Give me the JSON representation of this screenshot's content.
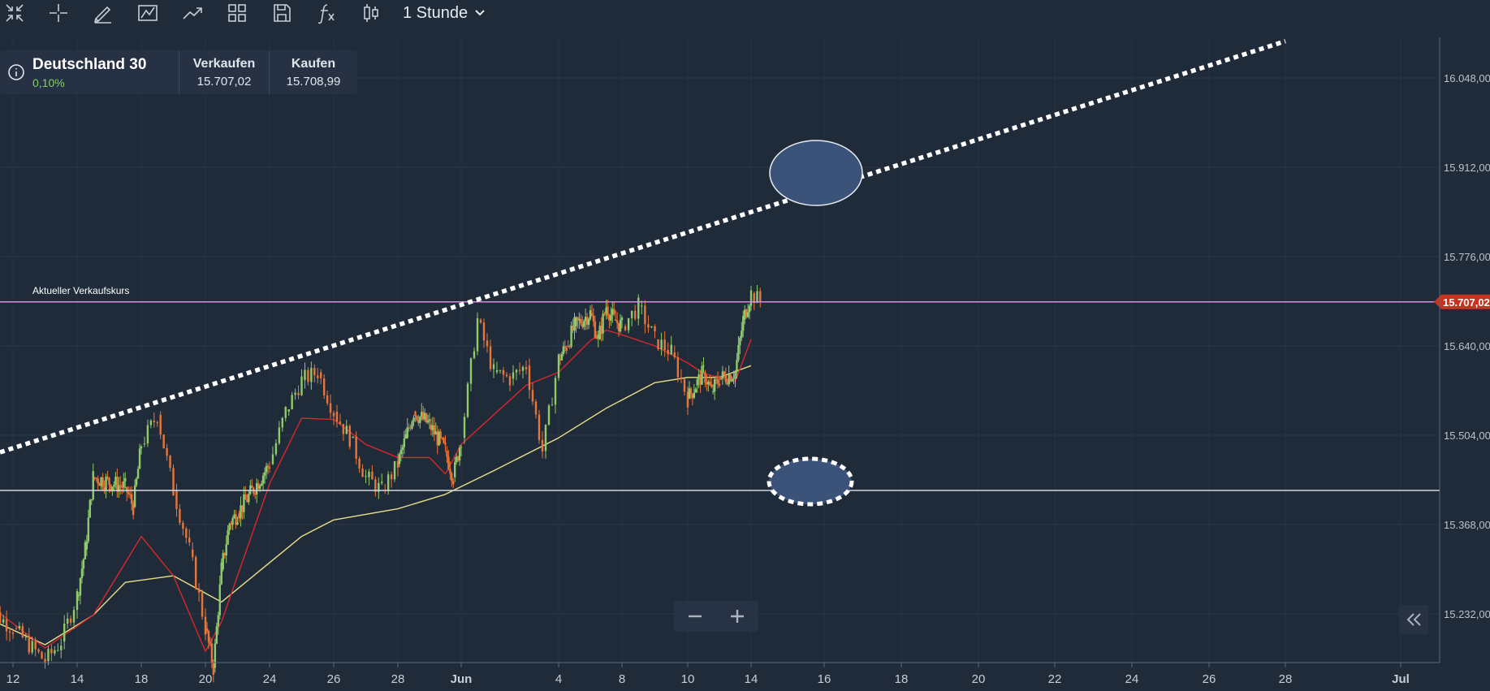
{
  "toolbar": {
    "icons": [
      "collapse-arrows-icon",
      "crosshair-icon",
      "pencil-icon",
      "line-chart-icon",
      "trend-icon",
      "grid-layout-icon",
      "save-icon",
      "function-icon",
      "candlestick-icon"
    ],
    "timeframe_label": "1 Stunde"
  },
  "instrument": {
    "name": "Deutschland 30",
    "change": "0,10%",
    "sell_label": "Verkaufen",
    "sell_price": "15.707,02",
    "buy_label": "Kaufen",
    "buy_price": "15.708,99"
  },
  "chart_data": {
    "type": "candlestick",
    "annotation_label": "Aktueller Verkaufskurs",
    "current_price_label": "15.707,02",
    "current_price": 15707.02,
    "y_ticks": [
      {
        "value": 16048,
        "label": "16.048,00"
      },
      {
        "value": 15912,
        "label": "15.912,00"
      },
      {
        "value": 15776,
        "label": "15.776,00"
      },
      {
        "value": 15640,
        "label": "15.640,00"
      },
      {
        "value": 15504,
        "label": "15.504,00"
      },
      {
        "value": 15368,
        "label": "15.368,00"
      },
      {
        "value": 15232,
        "label": "15.232,00"
      }
    ],
    "x_ticks": [
      "12",
      "14",
      "18",
      "20",
      "24",
      "26",
      "28",
      "Jun",
      "4",
      "8",
      "10",
      "14",
      "16",
      "18",
      "20",
      "22",
      "24",
      "26",
      "28",
      "Jul"
    ],
    "ylim": [
      15160,
      16110
    ],
    "colors": {
      "up": "#8fca6b",
      "down": "#e8763a",
      "ma_fast": "#d9262b",
      "ma_slow": "#e7e08a",
      "price_line": "#d88ce0",
      "price_tag": "#c8321e",
      "support_line": "#d3d8de",
      "trendline": "#ffffff",
      "ellipse_fill": "#3b5378"
    },
    "support_level": 15420,
    "trendline_points": [
      {
        "date": "12.05.",
        "value": 15478
      },
      {
        "date": "28.06.",
        "value": 16104
      }
    ],
    "ma_fast": [
      {
        "date": "11.05.",
        "value": 15255
      },
      {
        "date": "13.05.",
        "value": 15180
      },
      {
        "date": "15.05.",
        "value": 15230
      },
      {
        "date": "18.05.",
        "value": 15350
      },
      {
        "date": "19.05.",
        "value": 15290
      },
      {
        "date": "20.05.",
        "value": 15175
      },
      {
        "date": "21.05.",
        "value": 15220
      },
      {
        "date": "24.05.",
        "value": 15430
      },
      {
        "date": "25.05.",
        "value": 15530
      },
      {
        "date": "26.05.",
        "value": 15528
      },
      {
        "date": "27.05.",
        "value": 15490
      },
      {
        "date": "28.05.",
        "value": 15470
      },
      {
        "date": "30.05.",
        "value": 15470
      },
      {
        "date": "31.05.",
        "value": 15445
      },
      {
        "date": "01.06.",
        "value": 15490
      },
      {
        "date": "03.06.",
        "value": 15580
      },
      {
        "date": "04.06.",
        "value": 15600
      },
      {
        "date": "06.06.",
        "value": 15648
      },
      {
        "date": "07.06.",
        "value": 15664
      },
      {
        "date": "08.06.",
        "value": 15657
      },
      {
        "date": "09.06.",
        "value": 15640
      },
      {
        "date": "10.06.",
        "value": 15614
      },
      {
        "date": "11.06.",
        "value": 15598
      },
      {
        "date": "13.06.",
        "value": 15586
      },
      {
        "date": "14.06.",
        "value": 15650
      }
    ],
    "ma_slow": [
      {
        "date": "11.05.",
        "value": 15230
      },
      {
        "date": "13.05.",
        "value": 15185
      },
      {
        "date": "15.05.",
        "value": 15230
      },
      {
        "date": "17.05.",
        "value": 15280
      },
      {
        "date": "19.05.",
        "value": 15290
      },
      {
        "date": "21.05.",
        "value": 15250
      },
      {
        "date": "24.05.",
        "value": 15310
      },
      {
        "date": "25.05.",
        "value": 15350
      },
      {
        "date": "26.05.",
        "value": 15375
      },
      {
        "date": "28.05.",
        "value": 15392
      },
      {
        "date": "31.05.",
        "value": 15414
      },
      {
        "date": "02.06.",
        "value": 15450
      },
      {
        "date": "04.06.",
        "value": 15500
      },
      {
        "date": "07.06.",
        "value": 15545
      },
      {
        "date": "09.06.",
        "value": 15584
      },
      {
        "date": "10.06.",
        "value": 15592
      },
      {
        "date": "12.06.",
        "value": 15592
      },
      {
        "date": "14.06.",
        "value": 15610
      }
    ],
    "candles": [
      {
        "date": "11.05.",
        "value": 15250
      },
      {
        "date": "12.05.",
        "value": 15210
      },
      {
        "date": "13.05.",
        "value": 15160
      },
      {
        "date": "13.05. 12h",
        "value": 15190
      },
      {
        "date": "14.05.",
        "value": 15260
      },
      {
        "date": "14.05. 12h",
        "value": 15330
      },
      {
        "date": "15.05.",
        "value": 15440
      },
      {
        "date": "17.05.",
        "value": 15425
      },
      {
        "date": "17.05. 12h",
        "value": 15395
      },
      {
        "date": "18.05.",
        "value": 15490
      },
      {
        "date": "18.05. 12h",
        "value": 15535
      },
      {
        "date": "19.05.",
        "value": 15420
      },
      {
        "date": "19.05. 12h",
        "value": 15330
      },
      {
        "date": "20.05.",
        "value": 15210
      },
      {
        "date": "20.05. 12h",
        "value": 15150
      },
      {
        "date": "21.05.",
        "value": 15300
      },
      {
        "date": "21.05. 12h",
        "value": 15370
      },
      {
        "date": "22.05.",
        "value": 15385
      },
      {
        "date": "24.05.",
        "value": 15460
      },
      {
        "date": "24.05. 12h",
        "value": 15540
      },
      {
        "date": "25.05.",
        "value": 15588
      },
      {
        "date": "25.05. 12h",
        "value": 15600
      },
      {
        "date": "26.05.",
        "value": 15540
      },
      {
        "date": "26.05. 12h",
        "value": 15500
      },
      {
        "date": "27.05.",
        "value": 15440
      },
      {
        "date": "27.05. 12h",
        "value": 15420
      },
      {
        "date": "28.05.",
        "value": 15460
      },
      {
        "date": "28.05. 12h",
        "value": 15500
      },
      {
        "date": "29.05.",
        "value": 15540
      },
      {
        "date": "30.05.",
        "value": 15520
      },
      {
        "date": "31.05.",
        "value": 15480
      },
      {
        "date": "31.05. 12h",
        "value": 15440
      },
      {
        "date": "01.06.",
        "value": 15500
      },
      {
        "date": "01.06. 12h",
        "value": 15680
      },
      {
        "date": "02.06.",
        "value": 15600
      },
      {
        "date": "02.06. 12h",
        "value": 15590
      },
      {
        "date": "03.06.",
        "value": 15610
      },
      {
        "date": "03.06. 12h",
        "value": 15480
      },
      {
        "date": "04.06.",
        "value": 15620
      },
      {
        "date": "04.06. 12h",
        "value": 15640
      },
      {
        "date": "05.06.",
        "value": 15670
      },
      {
        "date": "06.06.",
        "value": 15690
      },
      {
        "date": "06.06. 12h",
        "value": 15650
      },
      {
        "date": "07.06.",
        "value": 15700
      },
      {
        "date": "07.06. 12h",
        "value": 15680
      },
      {
        "date": "08.06.",
        "value": 15670
      },
      {
        "date": "08.06. 12h",
        "value": 15700
      },
      {
        "date": "09.06.",
        "value": 15650
      },
      {
        "date": "09.06. 12h",
        "value": 15630
      },
      {
        "date": "10.06.",
        "value": 15560
      },
      {
        "date": "10.06. 12h",
        "value": 15580
      },
      {
        "date": "11.06.",
        "value": 15600
      },
      {
        "date": "11.06. 12h",
        "value": 15570
      },
      {
        "date": "12.06.",
        "value": 15590
      },
      {
        "date": "13.06.",
        "value": 15600
      },
      {
        "date": "13.06. 12h",
        "value": 15680
      },
      {
        "date": "14.06.",
        "value": 15720
      },
      {
        "date": "14.06. 6h",
        "value": 15707
      }
    ]
  },
  "zoom": {
    "out_symbol": "−",
    "in_symbol": "+"
  }
}
